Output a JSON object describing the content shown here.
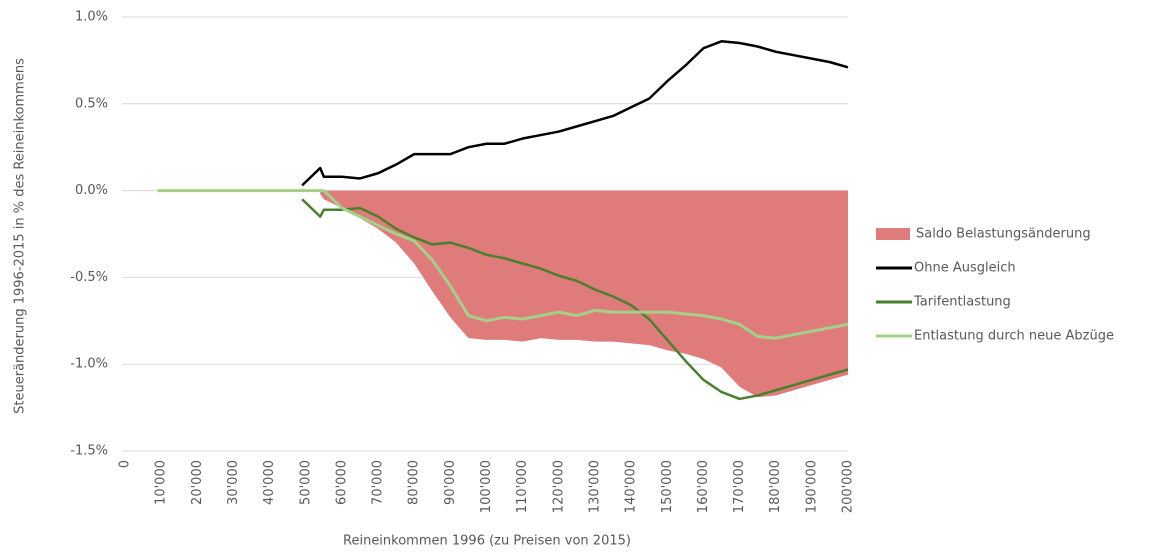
{
  "chart_data": {
    "type": "line",
    "ylabel": "Steueränderung 1996-2015 in % des Reineinkommens",
    "xlabel": "Reineinkommen 1996  (zu Preisen von 2015)",
    "x": [
      9000,
      20000,
      30000,
      40000,
      49000,
      54000,
      55000,
      60000,
      65000,
      70000,
      75000,
      80000,
      85000,
      90000,
      95000,
      100000,
      105000,
      110000,
      115000,
      120000,
      125000,
      130000,
      135000,
      140000,
      145000,
      150000,
      155000,
      160000,
      165000,
      170000,
      175000,
      180000,
      185000,
      190000,
      195000,
      200000
    ],
    "series": [
      {
        "name": "Saldo Belastungsänderung",
        "type": "area",
        "color": "#e07b7b",
        "values": [
          null,
          null,
          null,
          null,
          null,
          -0.02,
          -0.05,
          -0.1,
          -0.16,
          -0.22,
          -0.3,
          -0.42,
          -0.58,
          -0.73,
          -0.85,
          -0.86,
          -0.86,
          -0.87,
          -0.85,
          -0.86,
          -0.86,
          -0.87,
          -0.87,
          -0.88,
          -0.89,
          -0.92,
          -0.94,
          -0.97,
          -1.02,
          -1.13,
          -1.19,
          -1.18,
          -1.15,
          -1.12,
          -1.09,
          -1.06
        ]
      },
      {
        "name": "Ohne Ausgleich",
        "type": "line",
        "color": "#000000",
        "values": [
          null,
          null,
          null,
          null,
          0.03,
          0.13,
          0.08,
          0.08,
          0.07,
          0.1,
          0.15,
          0.21,
          0.21,
          0.21,
          0.25,
          0.27,
          0.27,
          0.3,
          0.32,
          0.34,
          0.37,
          0.4,
          0.43,
          0.48,
          0.53,
          0.63,
          0.72,
          0.82,
          0.86,
          0.85,
          0.83,
          0.8,
          0.78,
          0.76,
          0.74,
          0.71
        ]
      },
      {
        "name": "Tarifentlastung",
        "type": "line",
        "color": "#4a7f2e",
        "values": [
          null,
          null,
          null,
          null,
          -0.05,
          -0.15,
          -0.11,
          -0.11,
          -0.1,
          -0.15,
          -0.22,
          -0.27,
          -0.31,
          -0.3,
          -0.33,
          -0.37,
          -0.39,
          -0.42,
          -0.45,
          -0.49,
          -0.52,
          -0.57,
          -0.61,
          -0.66,
          -0.74,
          -0.86,
          -0.98,
          -1.09,
          -1.16,
          -1.2,
          -1.18,
          -1.15,
          -1.12,
          -1.09,
          -1.06,
          -1.03
        ]
      },
      {
        "name": "Entlastung durch neue Abzüge",
        "type": "line",
        "color": "#a3d18a",
        "values": [
          0,
          0,
          0,
          0,
          0,
          0,
          0,
          -0.1,
          -0.15,
          -0.2,
          -0.25,
          -0.29,
          -0.4,
          -0.55,
          -0.72,
          -0.75,
          -0.73,
          -0.74,
          -0.72,
          -0.7,
          -0.72,
          -0.69,
          -0.7,
          -0.7,
          -0.7,
          -0.7,
          -0.71,
          -0.72,
          -0.74,
          -0.77,
          -0.84,
          -0.85,
          -0.83,
          -0.81,
          -0.79,
          -0.77
        ]
      }
    ],
    "xlim": [
      0,
      200000
    ],
    "xticks": [
      0,
      {
        "value": 10000,
        "label": "10'000"
      },
      {
        "value": 20000,
        "label": "20'000"
      },
      {
        "value": 30000,
        "label": "30'000"
      },
      {
        "value": 40000,
        "label": "40'000"
      },
      {
        "value": 50000,
        "label": "50'000"
      },
      {
        "value": 60000,
        "label": "60'000"
      },
      {
        "value": 70000,
        "label": "70'000"
      },
      {
        "value": 80000,
        "label": "80'000"
      },
      {
        "value": 90000,
        "label": "90'000"
      },
      {
        "value": 100000,
        "label": "100'000"
      },
      {
        "value": 110000,
        "label": "110'000"
      },
      {
        "value": 120000,
        "label": "120'000"
      },
      {
        "value": 130000,
        "label": "130'000"
      },
      {
        "value": 140000,
        "label": "140'000"
      },
      {
        "value": 150000,
        "label": "150'000"
      },
      {
        "value": 160000,
        "label": "160'000"
      },
      {
        "value": 170000,
        "label": "170'000"
      },
      {
        "value": 180000,
        "label": "180'000"
      },
      {
        "value": 190000,
        "label": "190'000"
      },
      {
        "value": 200000,
        "label": "200'000"
      }
    ],
    "ylim": [
      -1.5,
      1
    ],
    "yticks": [
      {
        "value": 1,
        "label": "1.0%"
      },
      {
        "value": 0.5,
        "label": "0.5%"
      },
      {
        "value": 0,
        "label": "0.0%"
      },
      {
        "value": -0.5,
        "label": "-0.5%"
      },
      {
        "value": -1,
        "label": "-1.0%"
      },
      {
        "value": -1.5,
        "label": "-1.5%"
      }
    ],
    "grid": true,
    "legend": "right"
  }
}
